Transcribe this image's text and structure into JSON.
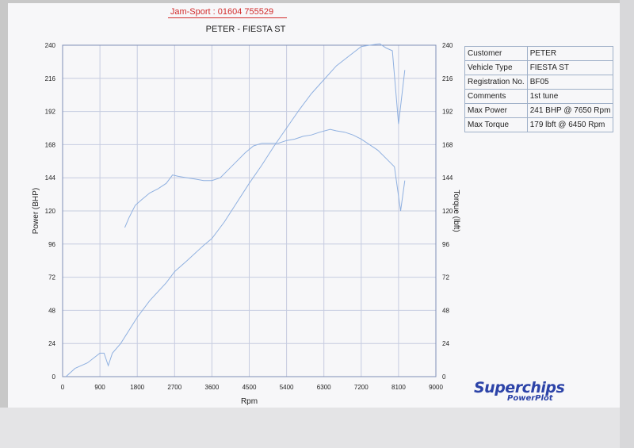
{
  "header": {
    "stamp": "Jam-Sport : 01604 755529",
    "title": "PETER - FIESTA ST"
  },
  "info": [
    {
      "label": "Customer",
      "value": "PETER"
    },
    {
      "label": "Vehicle Type",
      "value": "FIESTA ST"
    },
    {
      "label": "Registration No.",
      "value": "BF05"
    },
    {
      "label": "Comments",
      "value": "1st tune"
    },
    {
      "label": "Max Power",
      "value": "241 BHP @ 7650 Rpm"
    },
    {
      "label": "Max Torque",
      "value": "179 lbft @ 6450 Rpm"
    }
  ],
  "logo": {
    "main": "Superchips",
    "sub": "PowerPlot"
  },
  "chart_data": {
    "type": "line",
    "xlabel": "Rpm",
    "ylabel": "Power (BHP)",
    "y2label": "Torque (lbft)",
    "xlim": [
      0,
      9000
    ],
    "ylim": [
      0,
      240
    ],
    "y2lim": [
      0,
      240
    ],
    "xticks": [
      0,
      900,
      1800,
      2700,
      3600,
      4500,
      5400,
      6300,
      7200,
      8100,
      9000
    ],
    "yticks": [
      0,
      24,
      48,
      72,
      96,
      120,
      144,
      168,
      192,
      216,
      240
    ],
    "grid": true,
    "colors": {
      "series": "#8fb0e0",
      "grid": "#c6cce0",
      "frame": "#7f8fb8"
    },
    "series": [
      {
        "name": "Power",
        "x": [
          80,
          300,
          600,
          900,
          1000,
          1100,
          1200,
          1400,
          1800,
          2100,
          2500,
          2700,
          3000,
          3400,
          3600,
          3900,
          4200,
          4500,
          4800,
          5100,
          5400,
          5700,
          6000,
          6300,
          6600,
          6900,
          7200,
          7400,
          7650,
          7800,
          7950,
          8100,
          8250
        ],
        "y": [
          0,
          6,
          10,
          17,
          17,
          8,
          17,
          24,
          43,
          55,
          68,
          76,
          84,
          95,
          100,
          112,
          126,
          140,
          153,
          167,
          180,
          193,
          205,
          215,
          225,
          232,
          239,
          240,
          241,
          238,
          236,
          183,
          222
        ]
      },
      {
        "name": "Torque",
        "x": [
          1500,
          1600,
          1750,
          1900,
          2100,
          2300,
          2500,
          2650,
          2800,
          3000,
          3200,
          3400,
          3600,
          3800,
          4000,
          4200,
          4400,
          4600,
          4800,
          5000,
          5200,
          5400,
          5600,
          5800,
          6000,
          6200,
          6450,
          6600,
          6800,
          7000,
          7200,
          7400,
          7600,
          7800,
          8000,
          8150,
          8250
        ],
        "y": [
          108,
          115,
          124,
          128,
          133,
          136,
          140,
          146,
          145,
          144,
          143,
          142,
          142,
          144,
          150,
          156,
          162,
          167,
          169,
          169,
          169,
          171,
          172,
          174,
          175,
          177,
          179,
          178,
          177,
          175,
          172,
          168,
          164,
          158,
          152,
          120,
          142
        ]
      }
    ]
  }
}
